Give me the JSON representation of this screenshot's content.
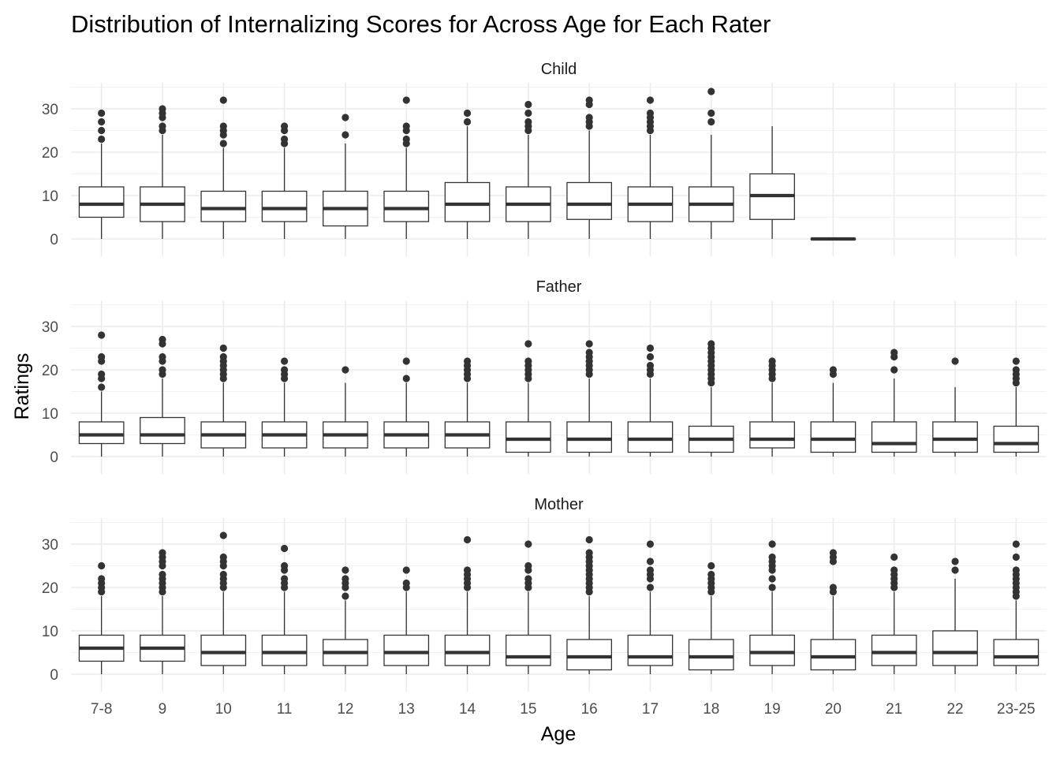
{
  "chart_data": {
    "type": "boxplot",
    "title": "Distribution of Internalizing Scores for Across Age for Each Rater",
    "xlabel": "Age",
    "ylabel": "Ratings",
    "categories": [
      "7-8",
      "9",
      "10",
      "11",
      "12",
      "13",
      "14",
      "15",
      "16",
      "17",
      "18",
      "19",
      "20",
      "21",
      "22",
      "23-25"
    ],
    "ylim": [
      -4,
      36
    ],
    "yticks": [
      0,
      10,
      20,
      30
    ],
    "grid": true,
    "facets": [
      {
        "name": "Child",
        "boxes": [
          {
            "category": "7-8",
            "min": 0,
            "q1": 5,
            "median": 8,
            "q3": 12,
            "max": 22,
            "outliers": [
              23,
              25,
              27,
              29
            ]
          },
          {
            "category": "9",
            "min": 0,
            "q1": 4,
            "median": 8,
            "q3": 12,
            "max": 24,
            "outliers": [
              25,
              26,
              28,
              29,
              30
            ]
          },
          {
            "category": "10",
            "min": 0,
            "q1": 4,
            "median": 7,
            "q3": 11,
            "max": 21,
            "outliers": [
              22,
              24,
              25,
              26,
              32
            ]
          },
          {
            "category": "11",
            "min": 0,
            "q1": 4,
            "median": 7,
            "q3": 11,
            "max": 21,
            "outliers": [
              22,
              23,
              25,
              26
            ]
          },
          {
            "category": "12",
            "min": 0,
            "q1": 3,
            "median": 7,
            "q3": 11,
            "max": 22,
            "outliers": [
              24,
              28
            ]
          },
          {
            "category": "13",
            "min": 0,
            "q1": 4,
            "median": 7,
            "q3": 11,
            "max": 21,
            "outliers": [
              22,
              23,
              25,
              26,
              32
            ]
          },
          {
            "category": "14",
            "min": 0,
            "q1": 4,
            "median": 8,
            "q3": 13,
            "max": 26,
            "outliers": [
              27,
              29
            ]
          },
          {
            "category": "15",
            "min": 0,
            "q1": 4,
            "median": 8,
            "q3": 12,
            "max": 24,
            "outliers": [
              25,
              26,
              27,
              29,
              31
            ]
          },
          {
            "category": "16",
            "min": 0,
            "q1": 4.5,
            "median": 8,
            "q3": 13,
            "max": 25,
            "outliers": [
              26,
              27,
              28,
              31,
              32
            ]
          },
          {
            "category": "17",
            "min": 0,
            "q1": 4,
            "median": 8,
            "q3": 12,
            "max": 24,
            "outliers": [
              25,
              26,
              27,
              28,
              29,
              32
            ]
          },
          {
            "category": "18",
            "min": 0,
            "q1": 4,
            "median": 8,
            "q3": 12,
            "max": 24,
            "outliers": [
              27,
              29,
              34
            ]
          },
          {
            "category": "19",
            "min": 0,
            "q1": 4.5,
            "median": 10,
            "q3": 15,
            "max": 26,
            "outliers": []
          },
          {
            "category": "20",
            "min": 0,
            "q1": 0,
            "median": 0,
            "q3": 0,
            "max": 0,
            "outliers": []
          }
        ]
      },
      {
        "name": "Father",
        "boxes": [
          {
            "category": "7-8",
            "min": 0,
            "q1": 3,
            "median": 5,
            "q3": 8,
            "max": 15,
            "outliers": [
              16,
              18,
              19,
              22,
              23,
              28
            ]
          },
          {
            "category": "9",
            "min": 0,
            "q1": 3,
            "median": 5,
            "q3": 9,
            "max": 18,
            "outliers": [
              19,
              20,
              22,
              23,
              26,
              27
            ]
          },
          {
            "category": "10",
            "min": 0,
            "q1": 2,
            "median": 5,
            "q3": 8,
            "max": 17,
            "outliers": [
              18,
              19,
              20,
              21,
              22,
              23,
              25
            ]
          },
          {
            "category": "11",
            "min": 0,
            "q1": 2,
            "median": 5,
            "q3": 8,
            "max": 17,
            "outliers": [
              18,
              19,
              20,
              22
            ]
          },
          {
            "category": "12",
            "min": 0,
            "q1": 2,
            "median": 5,
            "q3": 8,
            "max": 17,
            "outliers": [
              20
            ]
          },
          {
            "category": "13",
            "min": 0,
            "q1": 2,
            "median": 5,
            "q3": 8,
            "max": 17,
            "outliers": [
              18,
              22
            ]
          },
          {
            "category": "14",
            "min": 0,
            "q1": 2,
            "median": 5,
            "q3": 8,
            "max": 17,
            "outliers": [
              18,
              19,
              20,
              21,
              22
            ]
          },
          {
            "category": "15",
            "min": 0,
            "q1": 1,
            "median": 4,
            "q3": 8,
            "max": 17,
            "outliers": [
              18,
              19,
              20,
              21,
              22,
              26
            ]
          },
          {
            "category": "16",
            "min": 0,
            "q1": 1,
            "median": 4,
            "q3": 8,
            "max": 18,
            "outliers": [
              19,
              20,
              21,
              22,
              23,
              24,
              26
            ]
          },
          {
            "category": "17",
            "min": 0,
            "q1": 1,
            "median": 4,
            "q3": 8,
            "max": 18,
            "outliers": [
              19,
              20,
              21,
              23,
              25
            ]
          },
          {
            "category": "18",
            "min": 0,
            "q1": 1,
            "median": 4,
            "q3": 7,
            "max": 16,
            "outliers": [
              17,
              18,
              19,
              20,
              21,
              22,
              23,
              24,
              25,
              26
            ]
          },
          {
            "category": "19",
            "min": 0,
            "q1": 2,
            "median": 4,
            "q3": 8,
            "max": 17,
            "outliers": [
              18,
              19,
              20,
              21,
              22
            ]
          },
          {
            "category": "20",
            "min": 0,
            "q1": 1,
            "median": 4,
            "q3": 8,
            "max": 17,
            "outliers": [
              19,
              20
            ]
          },
          {
            "category": "21",
            "min": 0,
            "q1": 1,
            "median": 3,
            "q3": 8,
            "max": 18,
            "outliers": [
              20,
              23,
              24
            ]
          },
          {
            "category": "22",
            "min": 0,
            "q1": 1,
            "median": 4,
            "q3": 8,
            "max": 16,
            "outliers": [
              22
            ]
          },
          {
            "category": "23-25",
            "min": 0,
            "q1": 1,
            "median": 3,
            "q3": 7,
            "max": 16,
            "outliers": [
              17,
              18,
              19,
              20,
              22
            ]
          }
        ]
      },
      {
        "name": "Mother",
        "boxes": [
          {
            "category": "7-8",
            "min": 0,
            "q1": 3,
            "median": 6,
            "q3": 9,
            "max": 18,
            "outliers": [
              19,
              20,
              21,
              22,
              25
            ]
          },
          {
            "category": "9",
            "min": 0,
            "q1": 3,
            "median": 6,
            "q3": 9,
            "max": 18,
            "outliers": [
              19,
              20,
              21,
              22,
              23,
              25,
              26,
              27,
              28
            ]
          },
          {
            "category": "10",
            "min": 0,
            "q1": 2,
            "median": 5,
            "q3": 9,
            "max": 19,
            "outliers": [
              20,
              21,
              22,
              23,
              25,
              26,
              27,
              32
            ]
          },
          {
            "category": "11",
            "min": 0,
            "q1": 2,
            "median": 5,
            "q3": 9,
            "max": 19,
            "outliers": [
              20,
              21,
              22,
              24,
              25,
              29
            ]
          },
          {
            "category": "12",
            "min": 0,
            "q1": 2,
            "median": 5,
            "q3": 8,
            "max": 17,
            "outliers": [
              18,
              20,
              21,
              22,
              24
            ]
          },
          {
            "category": "13",
            "min": 0,
            "q1": 2,
            "median": 5,
            "q3": 9,
            "max": 19,
            "outliers": [
              20,
              21,
              24
            ]
          },
          {
            "category": "14",
            "min": 0,
            "q1": 2,
            "median": 5,
            "q3": 9,
            "max": 19,
            "outliers": [
              20,
              21,
              22,
              23,
              24,
              31
            ]
          },
          {
            "category": "15",
            "min": 0,
            "q1": 2,
            "median": 4,
            "q3": 9,
            "max": 19,
            "outliers": [
              20,
              21,
              22,
              24,
              25,
              30
            ]
          },
          {
            "category": "16",
            "min": 0,
            "q1": 1,
            "median": 4,
            "q3": 8,
            "max": 18,
            "outliers": [
              19,
              20,
              21,
              22,
              23,
              24,
              25,
              26,
              27,
              28,
              31
            ]
          },
          {
            "category": "17",
            "min": 0,
            "q1": 2,
            "median": 4,
            "q3": 9,
            "max": 19,
            "outliers": [
              20,
              22,
              23,
              24,
              26,
              30
            ]
          },
          {
            "category": "18",
            "min": 0,
            "q1": 1,
            "median": 4,
            "q3": 8,
            "max": 18,
            "outliers": [
              19,
              20,
              21,
              22,
              23,
              25
            ]
          },
          {
            "category": "19",
            "min": 0,
            "q1": 2,
            "median": 5,
            "q3": 9,
            "max": 19,
            "outliers": [
              20,
              22,
              24,
              25,
              26,
              27,
              30
            ]
          },
          {
            "category": "20",
            "min": 0,
            "q1": 1,
            "median": 4,
            "q3": 8,
            "max": 18,
            "outliers": [
              19,
              20,
              26,
              27,
              28
            ]
          },
          {
            "category": "21",
            "min": 0,
            "q1": 2,
            "median": 5,
            "q3": 9,
            "max": 19,
            "outliers": [
              20,
              21,
              22,
              23,
              24,
              27
            ]
          },
          {
            "category": "22",
            "min": 0,
            "q1": 2,
            "median": 5,
            "q3": 10,
            "max": 22,
            "outliers": [
              24,
              26
            ]
          },
          {
            "category": "23-25",
            "min": 0,
            "q1": 2,
            "median": 4,
            "q3": 8,
            "max": 17,
            "outliers": [
              18,
              19,
              20,
              21,
              22,
              23,
              24,
              27,
              30
            ]
          }
        ]
      }
    ]
  }
}
